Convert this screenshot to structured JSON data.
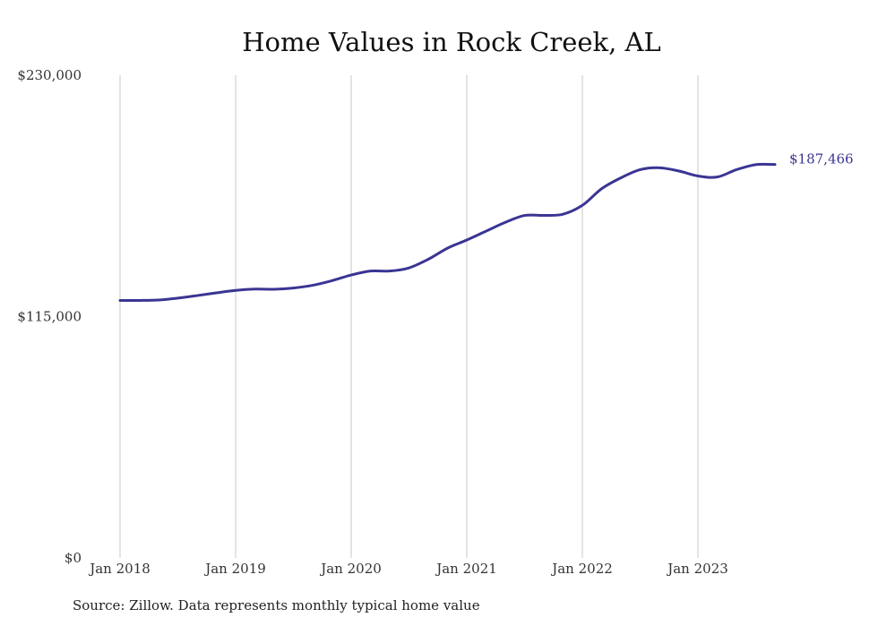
{
  "chart_data": {
    "type": "line",
    "title": "Home Values in Rock Creek, AL",
    "xlabel": "",
    "ylabel": "",
    "ylim": [
      0,
      230000
    ],
    "y_ticks": [
      "$230,000",
      "$115,000",
      "$0"
    ],
    "y_tick_values": [
      230000,
      115000,
      0
    ],
    "x_tick_labels": [
      "Jan 2018",
      "Jan 2019",
      "Jan 2020",
      "Jan 2021",
      "Jan 2022",
      "Jan 2023"
    ],
    "x_tick_values": [
      "2018-01",
      "2019-01",
      "2020-01",
      "2021-01",
      "2022-01",
      "2023-01"
    ],
    "grid": "vertical",
    "series": [
      {
        "color": "#3a3593",
        "points": [
          {
            "x": "2018-01",
            "y": 122700
          },
          {
            "x": "2018-03",
            "y": 122700
          },
          {
            "x": "2018-05",
            "y": 122900
          },
          {
            "x": "2018-07",
            "y": 123800
          },
          {
            "x": "2018-09",
            "y": 125000
          },
          {
            "x": "2018-11",
            "y": 126300
          },
          {
            "x": "2019-01",
            "y": 127500
          },
          {
            "x": "2019-03",
            "y": 128100
          },
          {
            "x": "2019-05",
            "y": 128000
          },
          {
            "x": "2019-07",
            "y": 128600
          },
          {
            "x": "2019-09",
            "y": 129900
          },
          {
            "x": "2019-11",
            "y": 132100
          },
          {
            "x": "2020-01",
            "y": 134800
          },
          {
            "x": "2020-03",
            "y": 136700
          },
          {
            "x": "2020-05",
            "y": 136700
          },
          {
            "x": "2020-07",
            "y": 138200
          },
          {
            "x": "2020-09",
            "y": 142300
          },
          {
            "x": "2020-11",
            "y": 147600
          },
          {
            "x": "2021-01",
            "y": 151500
          },
          {
            "x": "2021-03",
            "y": 155700
          },
          {
            "x": "2021-05",
            "y": 159900
          },
          {
            "x": "2021-07",
            "y": 163200
          },
          {
            "x": "2021-09",
            "y": 163200
          },
          {
            "x": "2021-11",
            "y": 163800
          },
          {
            "x": "2022-01",
            "y": 168000
          },
          {
            "x": "2022-03",
            "y": 175900
          },
          {
            "x": "2022-05",
            "y": 181100
          },
          {
            "x": "2022-07",
            "y": 185000
          },
          {
            "x": "2022-09",
            "y": 185900
          },
          {
            "x": "2022-11",
            "y": 184400
          },
          {
            "x": "2023-01",
            "y": 182000
          },
          {
            "x": "2023-03",
            "y": 181500
          },
          {
            "x": "2023-05",
            "y": 185000
          },
          {
            "x": "2023-07",
            "y": 187400
          },
          {
            "x": "2023-09",
            "y": 187466
          }
        ]
      }
    ],
    "end_label": "$187,466"
  },
  "source_note": "Source: Zillow. Data represents monthly typical home value"
}
